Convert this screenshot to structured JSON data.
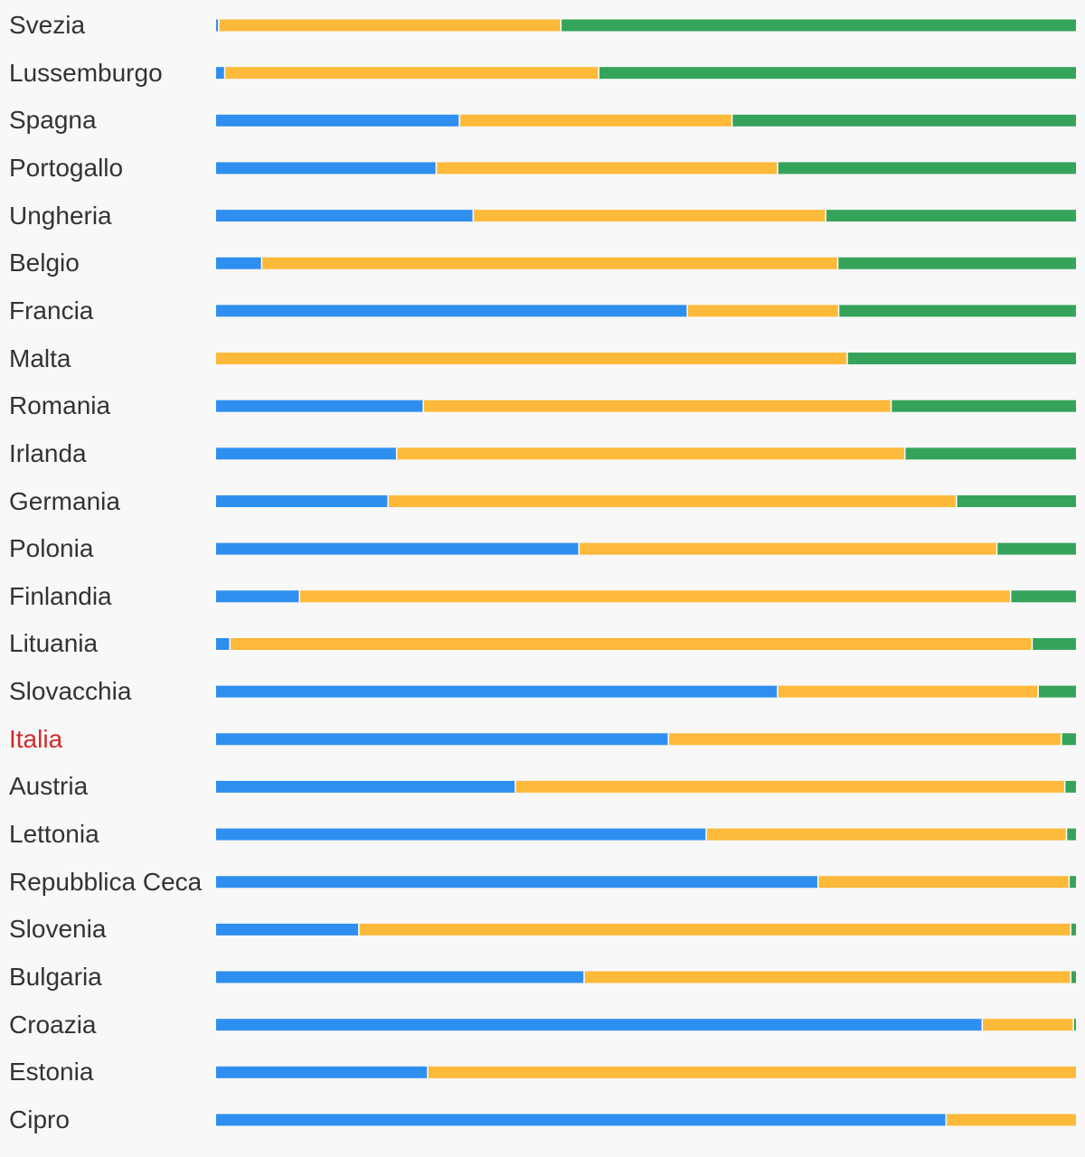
{
  "chart_data": {
    "type": "bar",
    "orientation": "horizontal",
    "stacked": true,
    "normalized": true,
    "grid": false,
    "legend": "none",
    "highlight_category": "Italia",
    "categories": [
      "Svezia",
      "Lussemburgo",
      "Spagna",
      "Portogallo",
      "Ungheria",
      "Belgio",
      "Francia",
      "Malta",
      "Romania",
      "Irlanda",
      "Germania",
      "Polonia",
      "Finlandia",
      "Lituania",
      "Slovacchia",
      "Italia",
      "Austria",
      "Lettonia",
      "Repubblica Ceca",
      "Slovenia",
      "Bulgaria",
      "Croazia",
      "Estonia",
      "Cipro"
    ],
    "series": [
      {
        "color": "#2f8ff0",
        "values": [
          0.3,
          1.0,
          28.3,
          25.6,
          29.9,
          5.3,
          54.8,
          0.0,
          24.1,
          21.0,
          20.0,
          42.2,
          9.7,
          1.6,
          65.3,
          52.6,
          34.8,
          57.0,
          70.0,
          16.6,
          42.8,
          89.1,
          24.6,
          84.9
        ]
      },
      {
        "color": "#fdb93a",
        "values": [
          39.8,
          43.5,
          31.7,
          39.7,
          41.0,
          67.0,
          17.6,
          73.4,
          54.4,
          59.1,
          66.1,
          48.6,
          82.7,
          93.3,
          30.3,
          45.7,
          63.9,
          41.9,
          29.2,
          82.8,
          56.6,
          10.6,
          75.4,
          15.1
        ]
      },
      {
        "color": "#35a35a",
        "values": [
          59.9,
          55.5,
          40.0,
          34.7,
          29.1,
          27.7,
          27.6,
          26.6,
          21.5,
          19.9,
          13.9,
          9.2,
          7.6,
          5.1,
          4.4,
          1.7,
          1.3,
          1.1,
          0.8,
          0.6,
          0.6,
          0.3,
          0.0,
          0.0
        ]
      }
    ]
  }
}
